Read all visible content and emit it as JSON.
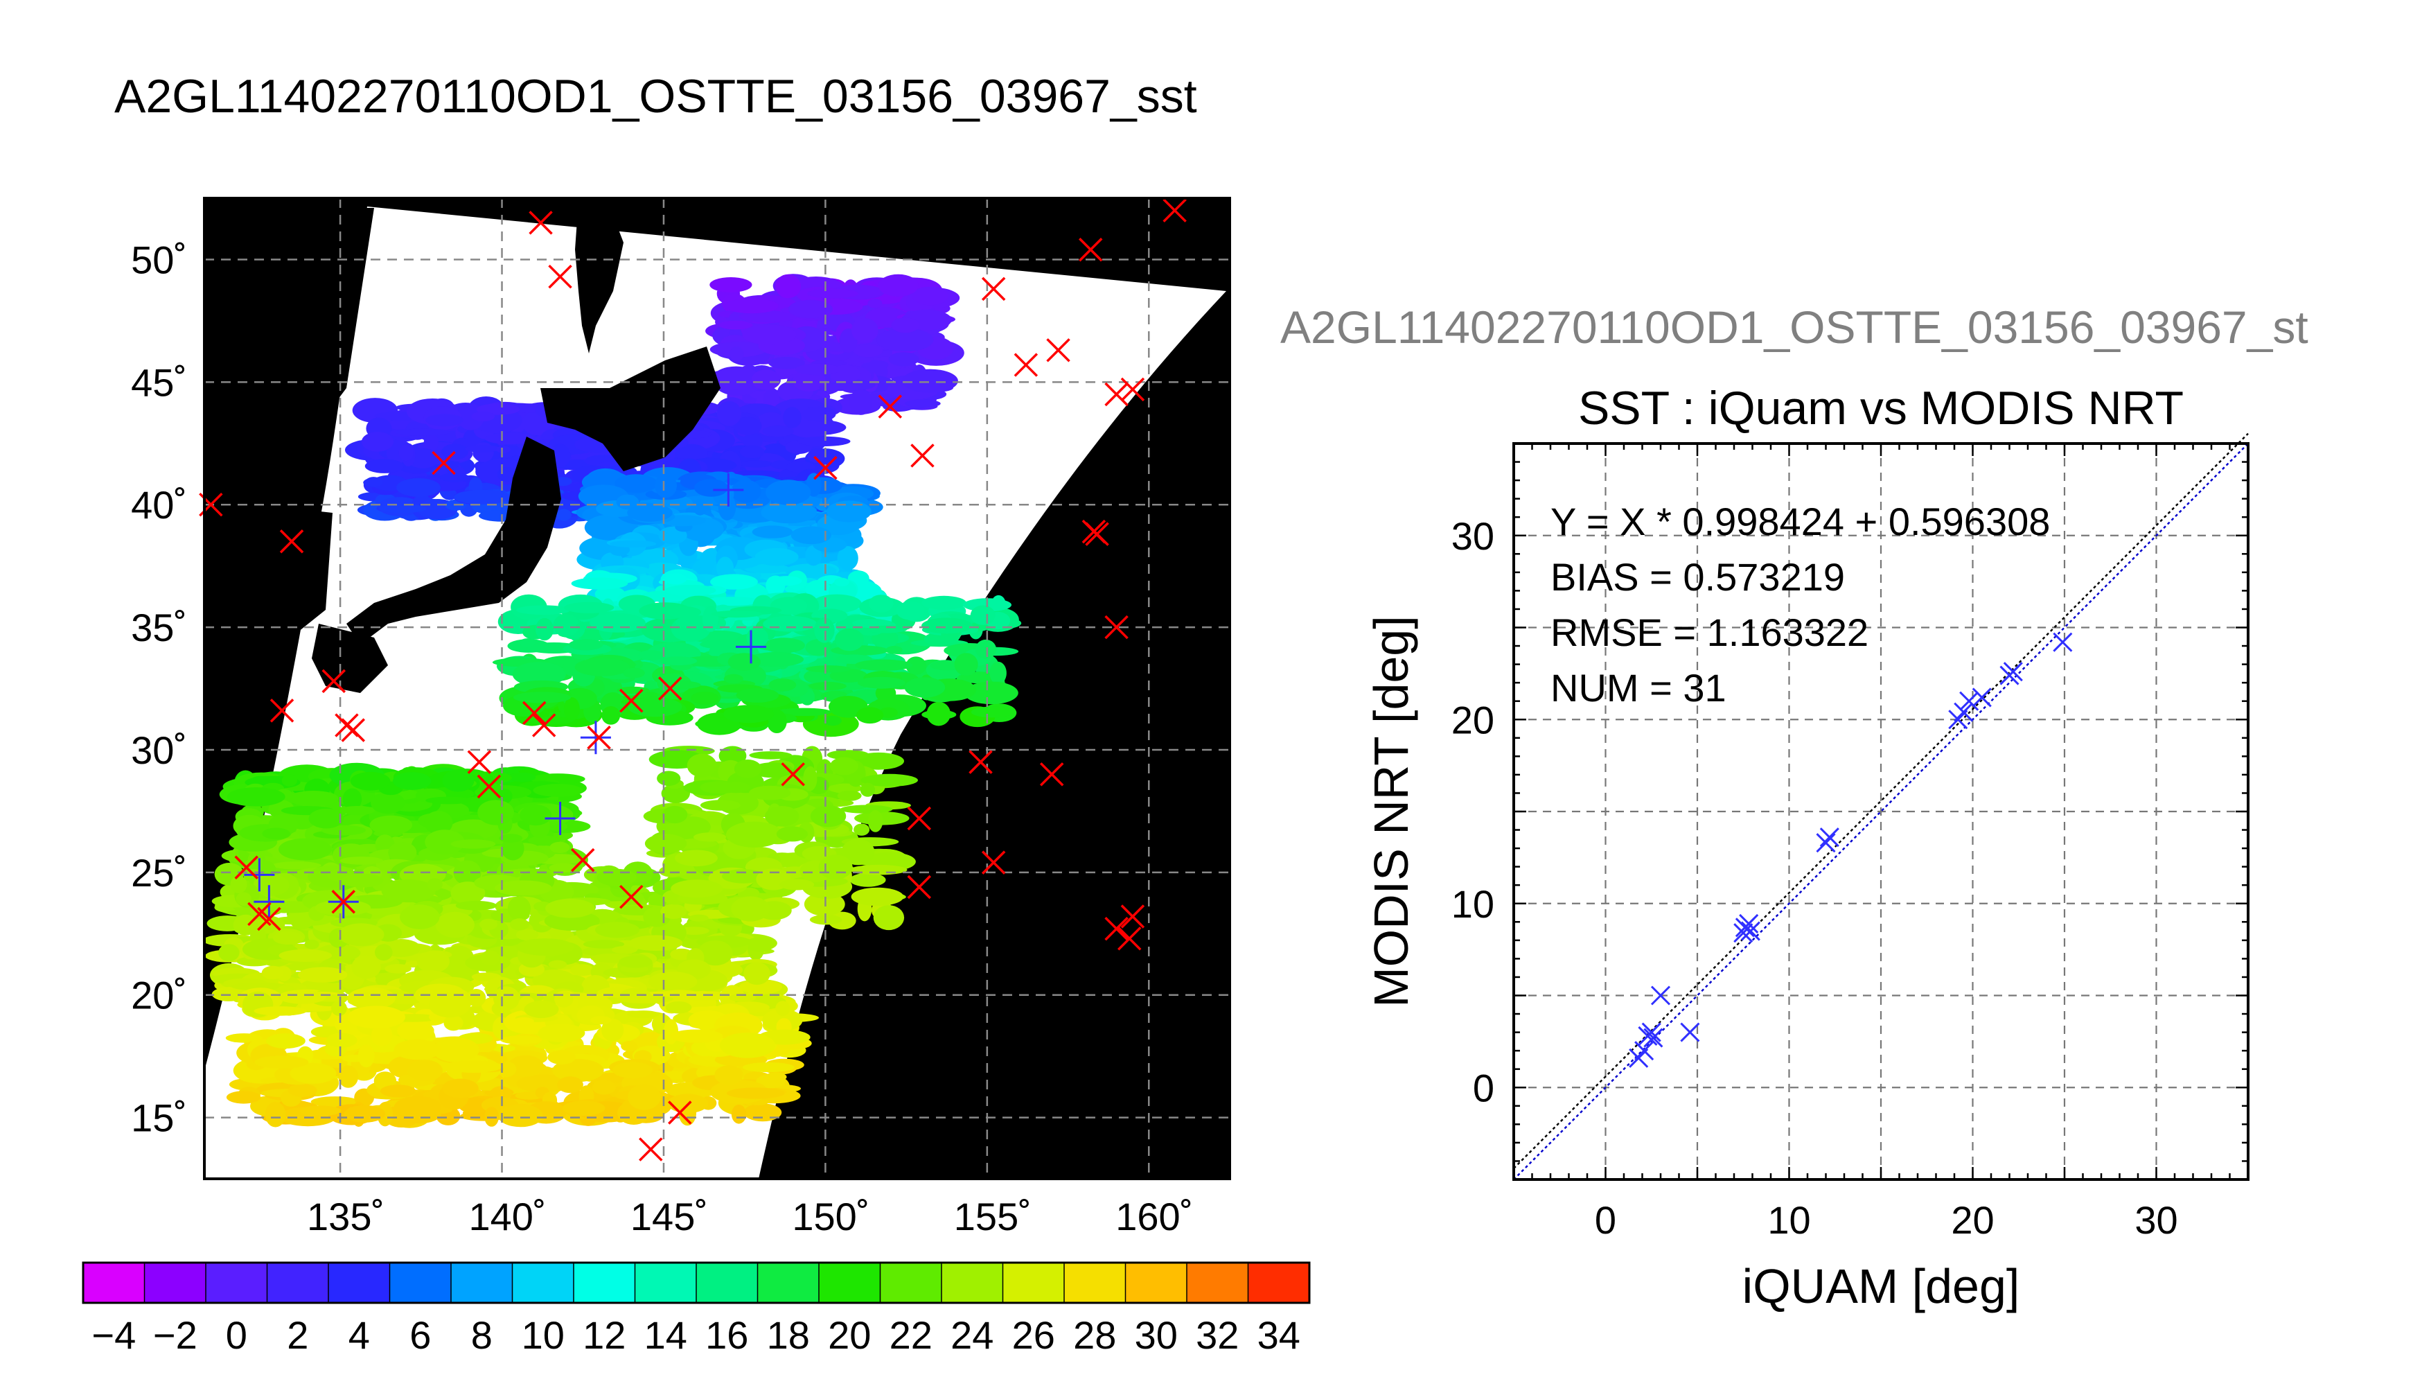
{
  "title": "A2GL11402270110OD1_OSTTE_03156_03967_sst",
  "right_title": "A2GL11402270110OD1_OSTTE_03156_03967_st",
  "colors": {
    "land": "#000000",
    "no_data": "#ffffff",
    "match_marker": "#ff0000",
    "valid_marker": "#3030ff",
    "fit_line": "#000000",
    "one_to_one_line": "#0000cc",
    "title_gray": "#808080"
  },
  "map": {
    "lat_ticks": [
      "50˚",
      "45˚",
      "40˚",
      "35˚",
      "30˚",
      "25˚",
      "20˚",
      "15˚"
    ],
    "lat_values": [
      50,
      45,
      40,
      35,
      30,
      25,
      20,
      15
    ],
    "lon_ticks": [
      "135˚",
      "140˚",
      "145˚",
      "150˚",
      "155˚",
      "160˚"
    ],
    "lon_values": [
      135,
      140,
      145,
      150,
      155,
      160
    ],
    "lon_range": [
      130.8,
      162.5
    ],
    "lat_range": [
      12.5,
      52.5
    ],
    "red_markers": [
      [
        141.2,
        51.5
      ],
      [
        141.8,
        49.3
      ],
      [
        155.2,
        48.8
      ],
      [
        158.2,
        50.4
      ],
      [
        160.8,
        52.0
      ],
      [
        156.2,
        45.7
      ],
      [
        157.2,
        46.3
      ],
      [
        159.0,
        44.5
      ],
      [
        159.5,
        44.7
      ],
      [
        152.0,
        44.0
      ],
      [
        153.0,
        42.0
      ],
      [
        150.0,
        41.5
      ],
      [
        138.2,
        41.7
      ],
      [
        131.0,
        40.0
      ],
      [
        133.5,
        38.5
      ],
      [
        158.3,
        38.9
      ],
      [
        158.4,
        38.8
      ],
      [
        159.0,
        35.0
      ],
      [
        134.8,
        32.8
      ],
      [
        135.2,
        31.0
      ],
      [
        135.4,
        30.8
      ],
      [
        133.2,
        31.6
      ],
      [
        141.0,
        31.5
      ],
      [
        141.3,
        31.0
      ],
      [
        143.0,
        30.5
      ],
      [
        144.0,
        32.0
      ],
      [
        145.2,
        32.5
      ],
      [
        139.3,
        29.5
      ],
      [
        139.6,
        28.5
      ],
      [
        149.0,
        29.0
      ],
      [
        154.8,
        29.5
      ],
      [
        157.0,
        29.0
      ],
      [
        152.9,
        27.2
      ],
      [
        142.5,
        25.5
      ],
      [
        155.2,
        25.4
      ],
      [
        152.9,
        24.4
      ],
      [
        132.1,
        25.2
      ],
      [
        132.5,
        23.3
      ],
      [
        132.8,
        23.1
      ],
      [
        135.1,
        23.8
      ],
      [
        144.0,
        24.0
      ],
      [
        159.0,
        22.7
      ],
      [
        159.4,
        22.3
      ],
      [
        159.5,
        23.2
      ],
      [
        145.5,
        15.2
      ],
      [
        144.6,
        13.7
      ]
    ],
    "valid_markers": [
      [
        147.0,
        40.6
      ],
      [
        147.7,
        34.2
      ],
      [
        142.9,
        30.5
      ],
      [
        141.8,
        27.2
      ],
      [
        132.5,
        24.9
      ],
      [
        132.8,
        23.8
      ],
      [
        135.1,
        23.8
      ]
    ]
  },
  "colorbar": {
    "tick_labels": [
      "−4",
      "−2",
      "0",
      "2",
      "4",
      "6",
      "8",
      "10",
      "12",
      "14",
      "16",
      "18",
      "20",
      "22",
      "24",
      "26",
      "28",
      "30",
      "32",
      "34"
    ],
    "range": [
      -5,
      35
    ]
  },
  "chart_data": {
    "type": "scatter",
    "title": "SST : iQuam vs MODIS NRT",
    "xlabel": "iQUAM [deg]",
    "ylabel": "MODIS NRT [deg]",
    "xlim": [
      -5,
      35
    ],
    "ylim": [
      -5,
      35
    ],
    "xticks": [
      0,
      10,
      20,
      30
    ],
    "yticks": [
      0,
      10,
      20,
      30
    ],
    "grid": true,
    "annotations": [
      "Y = X * 0.998424 + 0.596308",
      "BIAS = 0.573219",
      "RMSE = 1.163322",
      "NUM = 31"
    ],
    "fit": {
      "slope": 0.998424,
      "intercept": 0.596308
    },
    "points": [
      [
        1.8,
        1.6
      ],
      [
        2.1,
        2.0
      ],
      [
        2.3,
        2.8
      ],
      [
        2.5,
        3.0
      ],
      [
        2.6,
        2.7
      ],
      [
        3.0,
        5.0
      ],
      [
        4.6,
        3.0
      ],
      [
        7.5,
        8.4
      ],
      [
        7.6,
        8.7
      ],
      [
        7.8,
        8.9
      ],
      [
        7.9,
        8.5
      ],
      [
        12.0,
        13.3
      ],
      [
        12.2,
        13.6
      ],
      [
        19.2,
        20.0
      ],
      [
        19.5,
        20.4
      ],
      [
        19.8,
        21.0
      ],
      [
        20.5,
        21.2
      ],
      [
        22.0,
        22.4
      ],
      [
        22.2,
        22.6
      ],
      [
        24.9,
        24.2
      ]
    ]
  }
}
